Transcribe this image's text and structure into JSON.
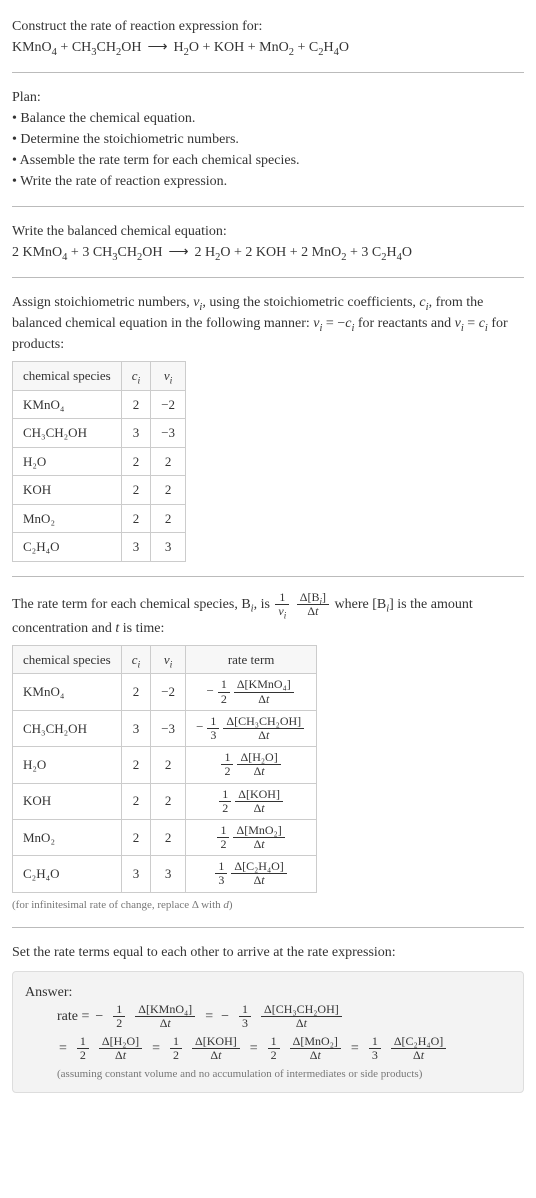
{
  "header": {
    "line1": "Construct the rate of reaction expression for:",
    "unbalanced_eq": "KMnO₄ + CH₃CH₂OH ⟶ H₂O + KOH + MnO₂ + C₂H₄O"
  },
  "plan": {
    "title": "Plan:",
    "items": [
      "Balance the chemical equation.",
      "Determine the stoichiometric numbers.",
      "Assemble the rate term for each chemical species.",
      "Write the rate of reaction expression."
    ]
  },
  "balanced": {
    "intro": "Write the balanced chemical equation:",
    "eq": "2 KMnO₄ + 3 CH₃CH₂OH ⟶ 2 H₂O + 2 KOH + 2 MnO₂ + 3 C₂H₄O"
  },
  "assign": {
    "para": "Assign stoichiometric numbers, νᵢ, using the stoichiometric coefficients, cᵢ, from the balanced chemical equation in the following manner: νᵢ = −cᵢ for reactants and νᵢ = cᵢ for products:",
    "table": {
      "columns": [
        "chemical species",
        "cᵢ",
        "νᵢ"
      ],
      "rows": [
        [
          "KMnO₄",
          "2",
          "−2"
        ],
        [
          "CH₃CH₂OH",
          "3",
          "−3"
        ],
        [
          "H₂O",
          "2",
          "2"
        ],
        [
          "KOH",
          "2",
          "2"
        ],
        [
          "MnO₂",
          "2",
          "2"
        ],
        [
          "C₂H₄O",
          "3",
          "3"
        ]
      ]
    }
  },
  "rateterm": {
    "intro_pre": "The rate term for each chemical species, Bᵢ, is ",
    "frac_left_num": "1",
    "frac_left_den": "νᵢ",
    "frac_right_num": "Δ[Bᵢ]",
    "frac_right_den": "Δt",
    "intro_post": " where [Bᵢ] is the amount concentration and t is time:",
    "table": {
      "columns": [
        "chemical species",
        "cᵢ",
        "νᵢ",
        "rate term"
      ],
      "rows": [
        {
          "sp": "KMnO₄",
          "c": "2",
          "v": "−2",
          "neg": true,
          "a": "1",
          "b": "2",
          "dnum": "Δ[KMnO₄]",
          "dden": "Δt"
        },
        {
          "sp": "CH₃CH₂OH",
          "c": "3",
          "v": "−3",
          "neg": true,
          "a": "1",
          "b": "3",
          "dnum": "Δ[CH₃CH₂OH]",
          "dden": "Δt"
        },
        {
          "sp": "H₂O",
          "c": "2",
          "v": "2",
          "neg": false,
          "a": "1",
          "b": "2",
          "dnum": "Δ[H₂O]",
          "dden": "Δt"
        },
        {
          "sp": "KOH",
          "c": "2",
          "v": "2",
          "neg": false,
          "a": "1",
          "b": "2",
          "dnum": "Δ[KOH]",
          "dden": "Δt"
        },
        {
          "sp": "MnO₂",
          "c": "2",
          "v": "2",
          "neg": false,
          "a": "1",
          "b": "2",
          "dnum": "Δ[MnO₂]",
          "dden": "Δt"
        },
        {
          "sp": "C₂H₄O",
          "c": "3",
          "v": "3",
          "neg": false,
          "a": "1",
          "b": "3",
          "dnum": "Δ[C₂H₄O]",
          "dden": "Δt"
        }
      ]
    },
    "note": "(for infinitesimal rate of change, replace Δ with d)"
  },
  "final": {
    "intro": "Set the rate terms equal to each other to arrive at the rate expression:",
    "answer_label": "Answer:",
    "rate_label": "rate =",
    "eq_sign": "=",
    "terms": [
      {
        "neg": true,
        "a": "1",
        "b": "2",
        "dnum": "Δ[KMnO₄]",
        "dden": "Δt"
      },
      {
        "neg": true,
        "a": "1",
        "b": "3",
        "dnum": "Δ[CH₃CH₂OH]",
        "dden": "Δt"
      },
      {
        "neg": false,
        "a": "1",
        "b": "2",
        "dnum": "Δ[H₂O]",
        "dden": "Δt"
      },
      {
        "neg": false,
        "a": "1",
        "b": "2",
        "dnum": "Δ[KOH]",
        "dden": "Δt"
      },
      {
        "neg": false,
        "a": "1",
        "b": "2",
        "dnum": "Δ[MnO₂]",
        "dden": "Δt"
      },
      {
        "neg": false,
        "a": "1",
        "b": "3",
        "dnum": "Δ[C₂H₄O]",
        "dden": "Δt"
      }
    ],
    "note": "(assuming constant volume and no accumulation of intermediates or side products)"
  }
}
